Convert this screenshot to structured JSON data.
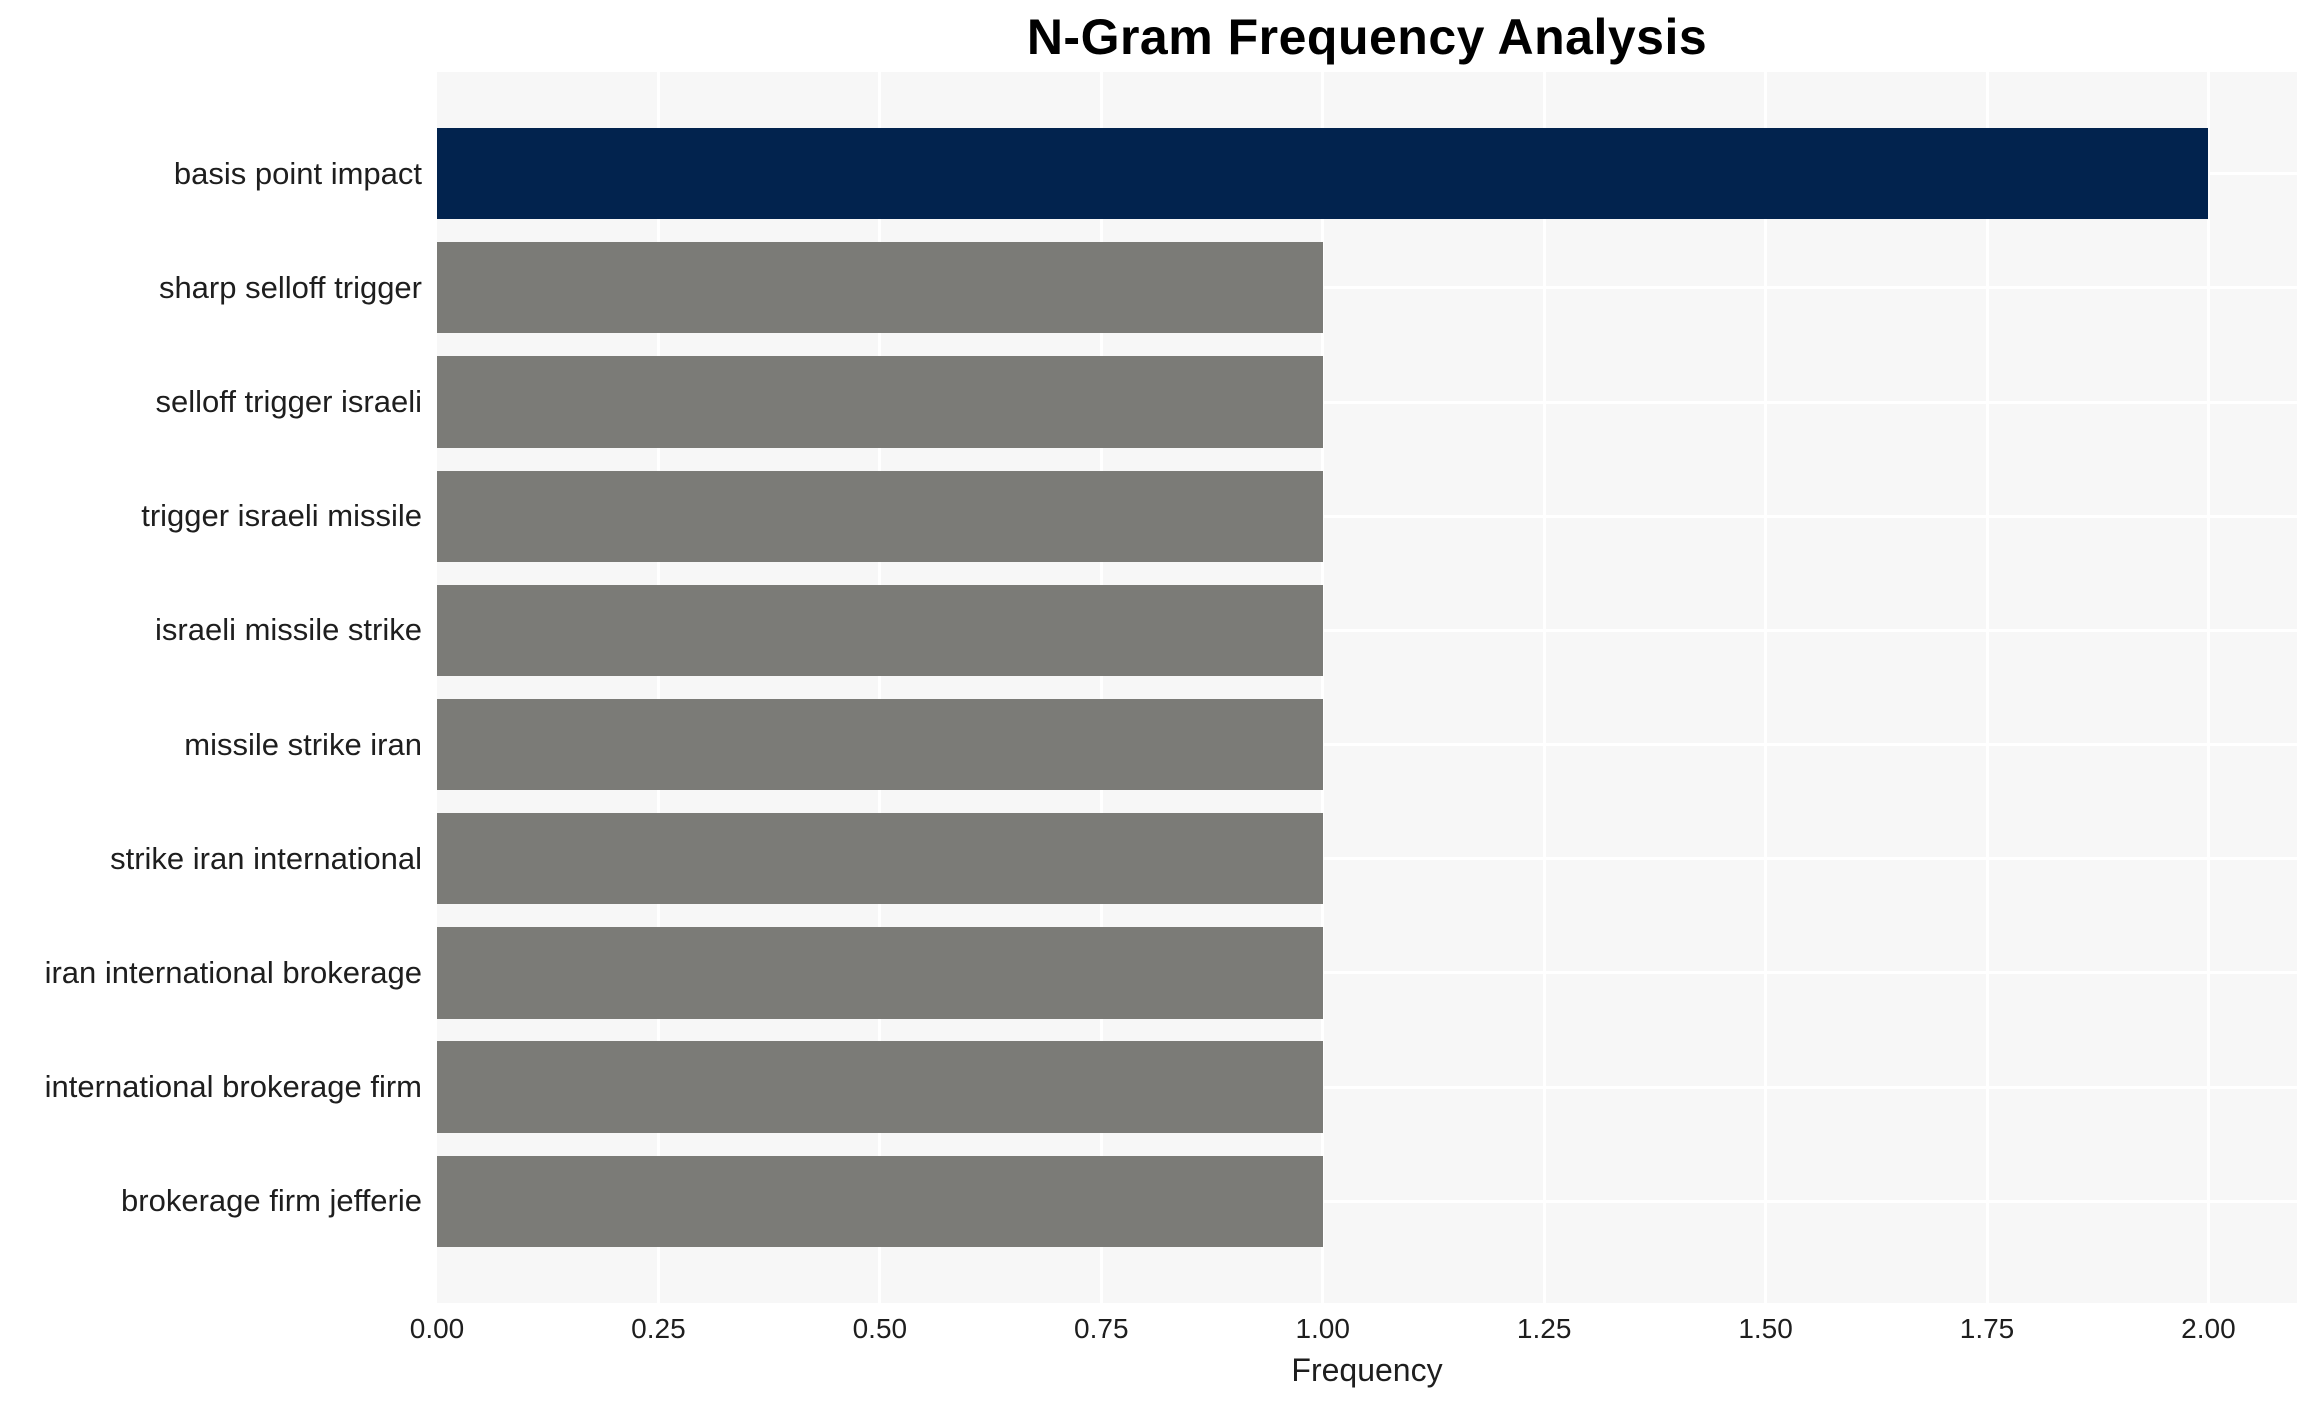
{
  "chart_data": {
    "type": "bar",
    "orientation": "horizontal",
    "title": "N-Gram Frequency Analysis",
    "xlabel": "Frequency",
    "ylabel": "",
    "categories": [
      "basis point impact",
      "sharp selloff trigger",
      "selloff trigger israeli",
      "trigger israeli missile",
      "israeli missile strike",
      "missile strike iran",
      "strike iran international",
      "iran international brokerage",
      "international brokerage firm",
      "brokerage firm jefferie"
    ],
    "values": [
      2,
      1,
      1,
      1,
      1,
      1,
      1,
      1,
      1,
      1
    ],
    "bar_colors": [
      "#02234E",
      "#7B7B77",
      "#7B7B77",
      "#7B7B77",
      "#7B7B77",
      "#7B7B77",
      "#7B7B77",
      "#7B7B77",
      "#7B7B77",
      "#7B7B77"
    ],
    "xlim": [
      0,
      2.1
    ],
    "xticks": [
      "0.00",
      "0.25",
      "0.50",
      "0.75",
      "1.00",
      "1.25",
      "1.50",
      "1.75",
      "2.00"
    ],
    "xtick_values": [
      0,
      0.25,
      0.5,
      0.75,
      1.0,
      1.25,
      1.5,
      1.75,
      2.0
    ],
    "grid": true,
    "legend": false,
    "colors": {
      "highlight_bar": "#02234E",
      "default_bar": "#7B7B77",
      "plot_background": "#F7F7F7",
      "gridline": "#FFFFFF",
      "figure_background": "#FFFFFF",
      "text": "#1E1E1E",
      "title_text": "#000000"
    }
  }
}
